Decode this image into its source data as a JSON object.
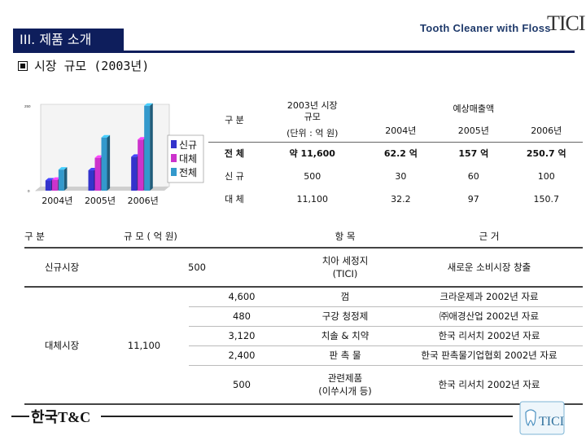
{
  "header": {
    "tagline": "Tooth Cleaner with Floss",
    "logo_text": "TICI",
    "section_tab": "III. 제품 소개",
    "subtitle": "시장 규모 (2003년)"
  },
  "chart_data": {
    "type": "bar",
    "categories": [
      "2004년",
      "2005년",
      "2006년"
    ],
    "series": [
      {
        "name": "신규",
        "values": [
          30,
          60,
          100
        ],
        "color": "#3333cc"
      },
      {
        "name": "대체",
        "values": [
          32.2,
          97,
          150.7
        ],
        "color": "#cc33cc"
      },
      {
        "name": "전체",
        "values": [
          62.2,
          157,
          250.7
        ],
        "color": "#3399cc"
      }
    ],
    "ylim": [
      0,
      250
    ],
    "ytick_labels": [
      "0",
      "250"
    ],
    "legend_placement": "right",
    "style": "3d"
  },
  "market_table": {
    "col_category": "구 분",
    "col_size": [
      "2003년 시장",
      "규모",
      "(단위 : 억 원)"
    ],
    "col_forecast": "예상매출액",
    "years": [
      "2004년",
      "2005년",
      "2006년"
    ],
    "rows": [
      {
        "label": "전 체",
        "size": "약 11,600",
        "values": [
          "62.2 억",
          "157 억",
          "250.7 억"
        ]
      },
      {
        "label": "신 규",
        "size": "500",
        "values": [
          "30",
          "60",
          "100"
        ]
      },
      {
        "label": "대 체",
        "size": "11,100",
        "values": [
          "32.2",
          "97",
          "150.7"
        ]
      }
    ]
  },
  "basis_table": {
    "headers": {
      "category": "구  분",
      "scale": "규 모 ( 억 원)",
      "item": "항 목",
      "basis": "근   거"
    },
    "groups": [
      {
        "category": "신규시장",
        "total": "500"
      },
      {
        "category": "대체시장",
        "total": "11,100"
      }
    ],
    "rows": [
      {
        "amount": "",
        "item": [
          "치아 세정지",
          "(TICI)"
        ],
        "basis": "새로운 소비시장 창출"
      },
      {
        "amount": "4,600",
        "item": [
          "껌"
        ],
        "basis": "크라운제과 2002년 자료"
      },
      {
        "amount": "480",
        "item": [
          "구강 청정제"
        ],
        "basis": "㈜애경산업 2002년 자료"
      },
      {
        "amount": "3,120",
        "item": [
          "치솔 & 치약"
        ],
        "basis": "한국 리서치 2002년 자료"
      },
      {
        "amount": "2,400",
        "item": [
          "판 촉 물"
        ],
        "basis": "한국 판촉물기업협회 2002년 자료"
      },
      {
        "amount": "500",
        "item": [
          "관련제품",
          "(이쑤시개 등)"
        ],
        "basis": "한국 리서치 2002년 자료"
      }
    ]
  },
  "footer": {
    "company": "한국T&C",
    "logo_text": "TICI"
  }
}
